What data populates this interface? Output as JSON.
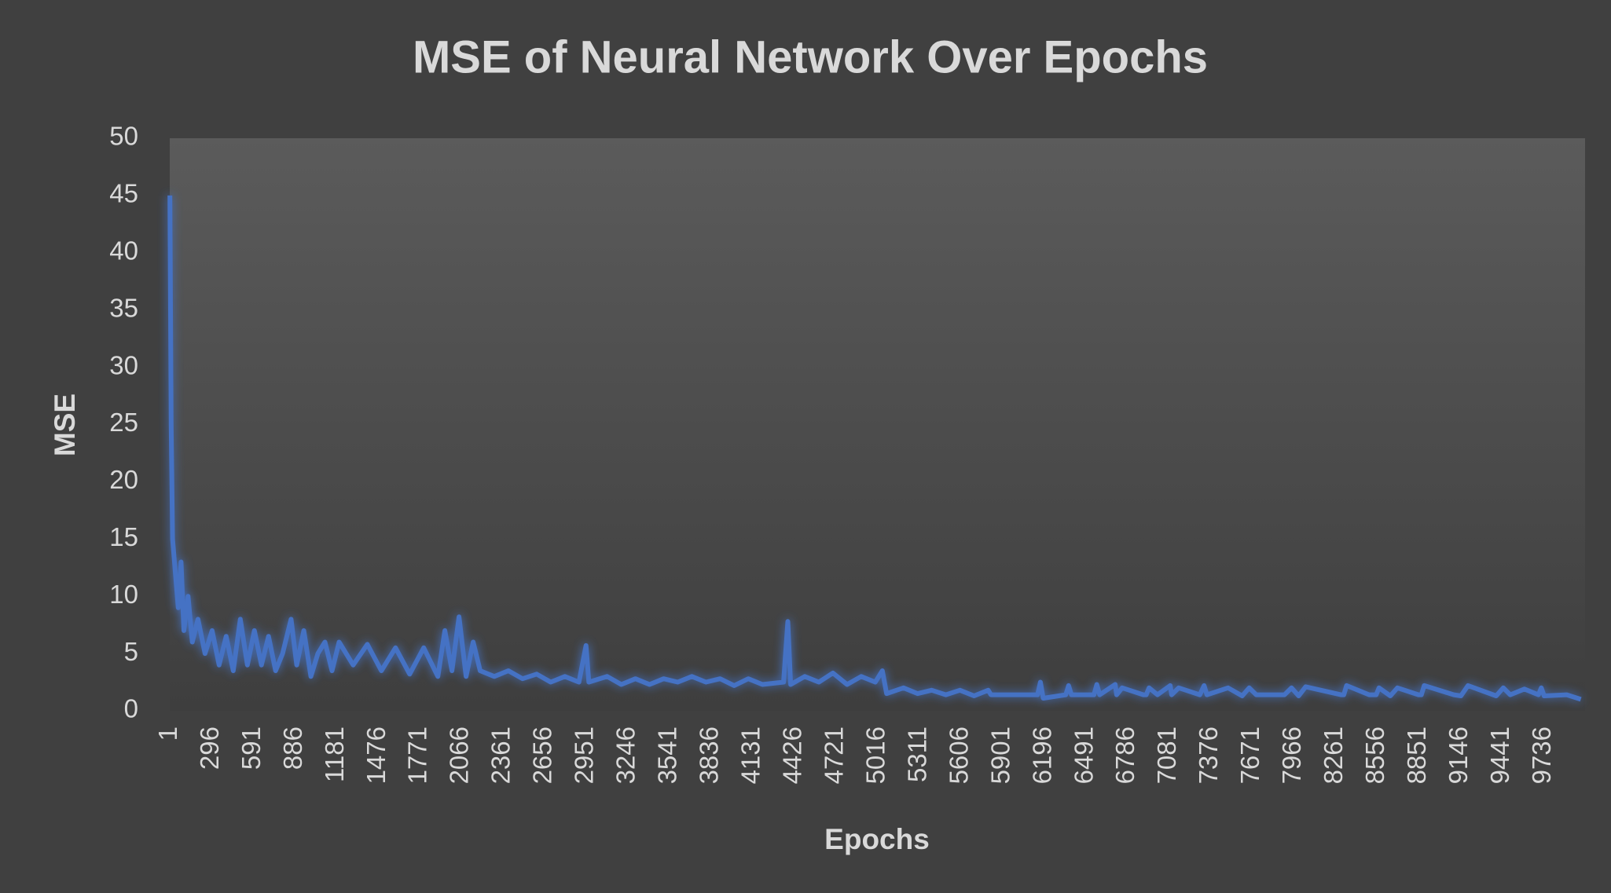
{
  "chart_data": {
    "type": "line",
    "title": "MSE of Neural Network Over Epochs",
    "x_label": "Epochs",
    "y_label": "MSE",
    "color": "#4472c4",
    "grid": false,
    "x": [
      1,
      10,
      20,
      40,
      60,
      80,
      100,
      130,
      160,
      200,
      250,
      300,
      350,
      400,
      450,
      500,
      550,
      600,
      650,
      700,
      750,
      800,
      860,
      900,
      950,
      1000,
      1050,
      1100,
      1150,
      1200,
      1300,
      1400,
      1500,
      1600,
      1700,
      1800,
      1900,
      1950,
      2000,
      2050,
      2100,
      2150,
      2200,
      2300,
      2400,
      2500,
      2600,
      2700,
      2800,
      2900,
      2950,
      2970,
      3100,
      3200,
      3300,
      3400,
      3500,
      3600,
      3700,
      3800,
      3900,
      4000,
      4100,
      4200,
      4350,
      4380,
      4400,
      4500,
      4600,
      4700,
      4800,
      4900,
      5000,
      5050,
      5080,
      5200,
      5300,
      5400,
      5500,
      5600,
      5700,
      5800,
      5820,
      6000,
      6150,
      6170,
      6190,
      6350,
      6370,
      6390,
      6550,
      6570,
      6590,
      6700,
      6710,
      6750,
      6900,
      6920,
      6940,
      7000,
      7090,
      7100,
      7150,
      7300,
      7330,
      7350,
      7500,
      7600,
      7650,
      7700,
      7900,
      7950,
      8000,
      8050,
      8300,
      8320,
      8340,
      8500,
      8550,
      8570,
      8650,
      8700,
      8850,
      8870,
      8890,
      9100,
      9150,
      9200,
      9400,
      9450,
      9500,
      9600,
      9700,
      9720,
      9740,
      9900,
      10000
    ],
    "values": [
      45,
      25,
      15,
      12,
      9,
      13,
      7,
      10,
      6,
      8,
      5,
      7,
      4,
      6.5,
      3.5,
      8,
      4,
      7,
      4,
      6.5,
      3.5,
      5,
      8,
      4,
      7,
      3,
      5,
      6,
      3.5,
      6,
      4,
      5.8,
      3.5,
      5.5,
      3.2,
      5.5,
      3,
      7,
      3.5,
      8.2,
      3,
      6,
      3.5,
      3,
      3.5,
      2.8,
      3.2,
      2.5,
      3,
      2.5,
      5.7,
      2.5,
      3,
      2.3,
      2.8,
      2.3,
      2.8,
      2.5,
      3,
      2.5,
      2.8,
      2.2,
      2.8,
      2.3,
      2.5,
      7.8,
      2.3,
      3,
      2.5,
      3.3,
      2.3,
      3,
      2.5,
      3.5,
      1.5,
      2,
      1.5,
      1.8,
      1.4,
      1.8,
      1.3,
      1.8,
      1.4,
      1.4,
      1.4,
      2.5,
      1.1,
      1.4,
      2.2,
      1.4,
      1.4,
      2.3,
      1.4,
      2.3,
      1.4,
      2,
      1.4,
      1.4,
      2,
      1.4,
      2.2,
      1.4,
      2,
      1.4,
      2.2,
      1.4,
      2,
      1.3,
      2,
      1.4,
      1.4,
      2,
      1.3,
      2.1,
      1.4,
      1.4,
      2.2,
      1.4,
      1.4,
      2,
      1.3,
      2,
      1.4,
      1.4,
      2.2,
      1.4,
      1.3,
      2.2,
      1.3,
      2,
      1.4,
      1.9,
      1.4,
      2,
      1.3,
      1.4,
      1
    ],
    "xlim": [
      0,
      10030
    ],
    "ylim": [
      0,
      50
    ],
    "yticks": [
      0,
      5,
      10,
      15,
      20,
      25,
      30,
      35,
      40,
      45,
      50
    ],
    "xticks": [
      1,
      296,
      591,
      886,
      1181,
      1476,
      1771,
      2066,
      2361,
      2656,
      2951,
      3246,
      3541,
      3836,
      4131,
      4426,
      4721,
      5016,
      5311,
      5606,
      5901,
      6196,
      6491,
      6786,
      7081,
      7376,
      7671,
      7966,
      8261,
      8556,
      8851,
      9146,
      9441,
      9736
    ]
  }
}
